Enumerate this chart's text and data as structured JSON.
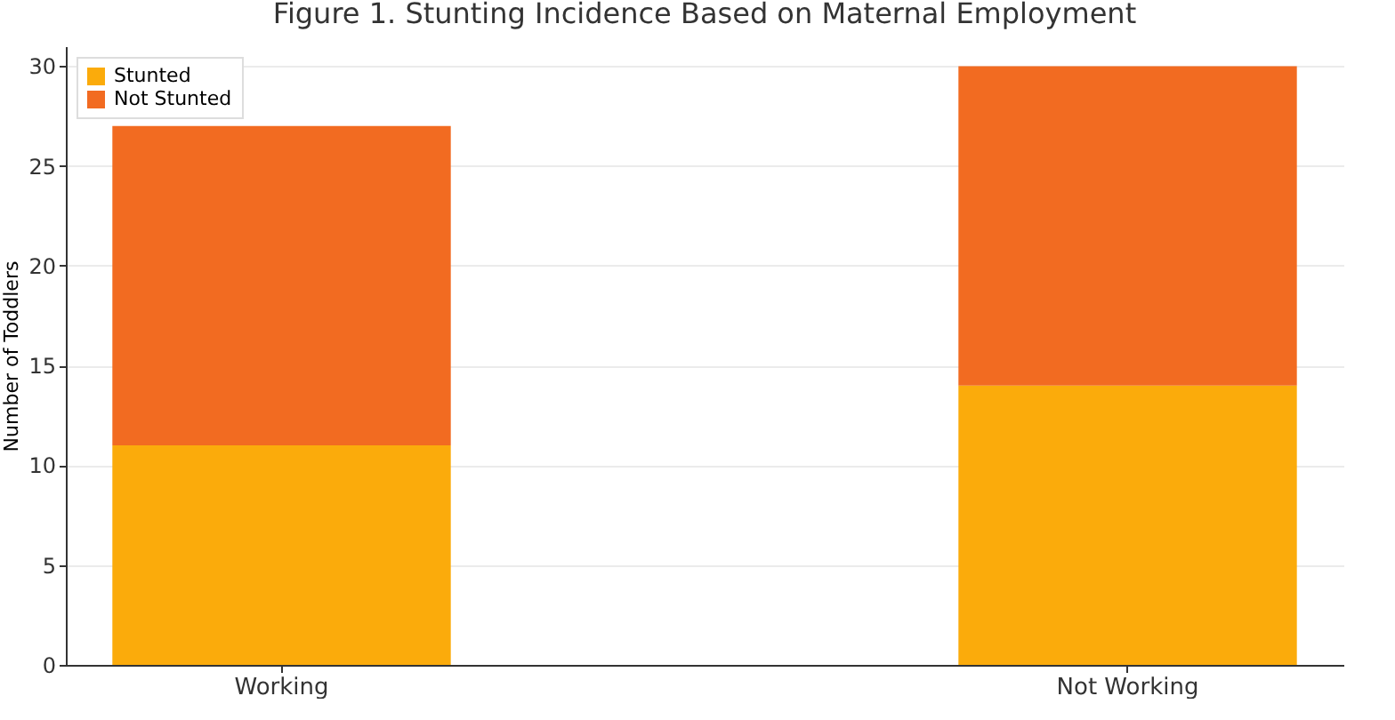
{
  "chart_data": {
    "type": "bar",
    "title": "Figure 1. Stunting Incidence Based on Maternal Employment",
    "ylabel": "Number of Toddlers",
    "categories": [
      "Working",
      "Not Working"
    ],
    "stacked": true,
    "series": [
      {
        "name": "Stunted",
        "color": "#fbab0b",
        "values": [
          11,
          14
        ]
      },
      {
        "name": "Not Stunted",
        "color": "#f26b21",
        "values": [
          16,
          16
        ]
      }
    ],
    "ylim": [
      0,
      31
    ],
    "yticks": [
      0,
      5,
      10,
      15,
      20,
      25,
      30
    ],
    "grid": "y",
    "legend": "top left"
  }
}
